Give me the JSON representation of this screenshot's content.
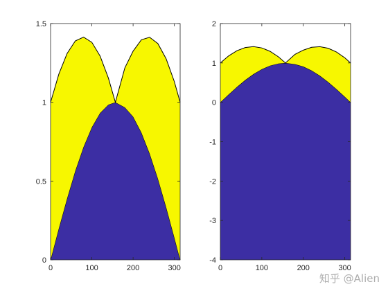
{
  "figure": {
    "watermark": "知乎 @Alien"
  },
  "chart_data": [
    {
      "type": "area",
      "stacked": true,
      "grid": false,
      "xlim": [
        0,
        314
      ],
      "ylim": [
        0,
        1.5
      ],
      "x_ticks": [
        0,
        100,
        200,
        300
      ],
      "x_tick_labels": [
        "0",
        "100",
        "200",
        "300"
      ],
      "y_ticks": [
        0,
        0.5,
        1,
        1.5
      ],
      "y_tick_labels": [
        "0",
        "0.5",
        "1",
        "1.5"
      ],
      "baseline": 0,
      "colors": [
        "#3c2ea3",
        "#f7f700"
      ],
      "series": [
        {
          "x": [
            0,
            20,
            40,
            60,
            80,
            100,
            120,
            140,
            157,
            180,
            200,
            220,
            240,
            260,
            280,
            300,
            314
          ],
          "values": [
            0,
            0.199,
            0.389,
            0.565,
            0.717,
            0.841,
            0.932,
            0.985,
            1.0,
            0.968,
            0.909,
            0.808,
            0.675,
            0.516,
            0.335,
            0.141,
            0
          ]
        },
        {
          "x": [
            0,
            20,
            40,
            60,
            80,
            100,
            120,
            140,
            157,
            180,
            200,
            220,
            240,
            260,
            280,
            300,
            314
          ],
          "values": [
            1.0,
            0.98,
            0.921,
            0.825,
            0.697,
            0.54,
            0.362,
            0.17,
            0,
            0.251,
            0.416,
            0.589,
            0.738,
            0.857,
            0.942,
            0.99,
            1.0
          ]
        }
      ]
    },
    {
      "type": "area",
      "stacked": true,
      "grid": false,
      "xlim": [
        0,
        314
      ],
      "ylim": [
        -4,
        2
      ],
      "x_ticks": [
        0,
        100,
        200,
        300
      ],
      "x_tick_labels": [
        "0",
        "100",
        "200",
        "300"
      ],
      "y_ticks": [
        -4,
        -3,
        -2,
        -1,
        0,
        1,
        2
      ],
      "y_tick_labels": [
        "-4",
        "-3",
        "-2",
        "-1",
        "0",
        "1",
        "2"
      ],
      "baseline": -4,
      "colors": [
        "#3c2ea3",
        "#f7f700"
      ],
      "series": [
        {
          "x": [
            0,
            20,
            40,
            60,
            80,
            100,
            120,
            140,
            157,
            180,
            200,
            220,
            240,
            260,
            280,
            300,
            314
          ],
          "values": [
            0,
            0.199,
            0.389,
            0.565,
            0.717,
            0.841,
            0.932,
            0.985,
            1.0,
            0.968,
            0.909,
            0.808,
            0.675,
            0.516,
            0.335,
            0.141,
            0
          ]
        },
        {
          "x": [
            0,
            20,
            40,
            60,
            80,
            100,
            120,
            140,
            157,
            180,
            200,
            220,
            240,
            260,
            280,
            300,
            314
          ],
          "values": [
            1.0,
            0.98,
            0.921,
            0.825,
            0.697,
            0.54,
            0.362,
            0.17,
            0,
            0.251,
            0.416,
            0.589,
            0.738,
            0.857,
            0.942,
            0.99,
            1.0
          ]
        }
      ]
    }
  ]
}
